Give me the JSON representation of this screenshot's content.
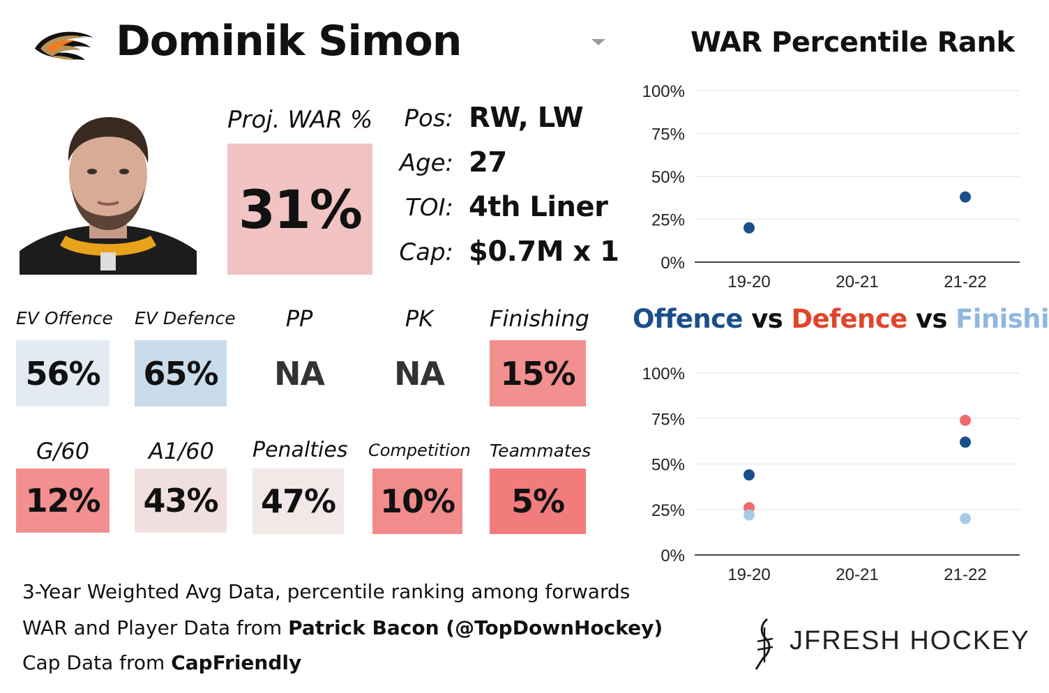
{
  "player": {
    "name": "Dominik Simon",
    "proj_war_label": "Proj. WAR %",
    "proj_war_value": "31%",
    "proj_war_color": "#f2c3c3",
    "info": [
      {
        "label": "Pos:",
        "value": "RW, LW"
      },
      {
        "label": "Age:",
        "value": "27"
      },
      {
        "label": "TOI:",
        "value": "4th Liner"
      },
      {
        "label": "Cap:",
        "value": "$0.7M x 1"
      }
    ]
  },
  "metrics_row1": [
    {
      "label": "EV Offence",
      "value": "56%",
      "color": "#e3eaf1"
    },
    {
      "label": "EV Defence",
      "value": "65%",
      "color": "#c9dcec"
    },
    {
      "label": "PP",
      "value": "NA",
      "color": "#ffffff"
    },
    {
      "label": "PK",
      "value": "NA",
      "color": "#ffffff"
    },
    {
      "label": "Finishing",
      "value": "15%",
      "color": "#f28f8f"
    }
  ],
  "metrics_row2": [
    {
      "label": "G/60",
      "value": "12%",
      "color": "#f28f8f"
    },
    {
      "label": "A1/60",
      "value": "43%",
      "color": "#f1dfdf"
    },
    {
      "label": "Penalties",
      "value": "47%",
      "color": "#f3e8e8"
    },
    {
      "label": "Competition",
      "value": "10%",
      "color": "#f28b8b"
    },
    {
      "label": "Teammates",
      "value": "5%",
      "color": "#f27c7c"
    }
  ],
  "chart_data": [
    {
      "type": "scatter",
      "title": "WAR Percentile Rank",
      "categories": [
        "19-20",
        "20-21",
        "21-22"
      ],
      "y_ticks": [
        "0%",
        "25%",
        "50%",
        "75%",
        "100%"
      ],
      "ylim": [
        0,
        100
      ],
      "grid": true,
      "series": [
        {
          "color": "#1b4f8a",
          "values": [
            20,
            null,
            38
          ]
        }
      ]
    },
    {
      "type": "scatter",
      "title_parts": [
        {
          "text": "Offence",
          "color": "#1b4f8a"
        },
        {
          "text": " vs ",
          "color": "#111111"
        },
        {
          "text": "Defence",
          "color": "#e0452b"
        },
        {
          "text": " vs ",
          "color": "#111111"
        },
        {
          "text": "Finishing",
          "color": "#8fb8e0"
        }
      ],
      "categories": [
        "19-20",
        "20-21",
        "21-22"
      ],
      "y_ticks": [
        "0%",
        "25%",
        "50%",
        "75%",
        "100%"
      ],
      "ylim": [
        0,
        100
      ],
      "grid": true,
      "series": [
        {
          "name": "Offence",
          "color": "#1b4f8a",
          "values": [
            44,
            null,
            62
          ]
        },
        {
          "name": "Defence",
          "color": "#ef6b6b",
          "values": [
            26,
            null,
            74
          ]
        },
        {
          "name": "Finishing",
          "color": "#a9cbe9",
          "values": [
            22,
            null,
            20
          ]
        }
      ]
    }
  ],
  "footer": {
    "line1": "3-Year Weighted Avg Data, percentile ranking among forwards",
    "line2_prefix": "WAR and Player Data from ",
    "line2_bold": "Patrick Bacon (@TopDownHockey)",
    "line3_prefix": "Cap Data from ",
    "line3_bold": "CapFriendly"
  },
  "brand": {
    "text": "JFRESH HOCKEY"
  }
}
